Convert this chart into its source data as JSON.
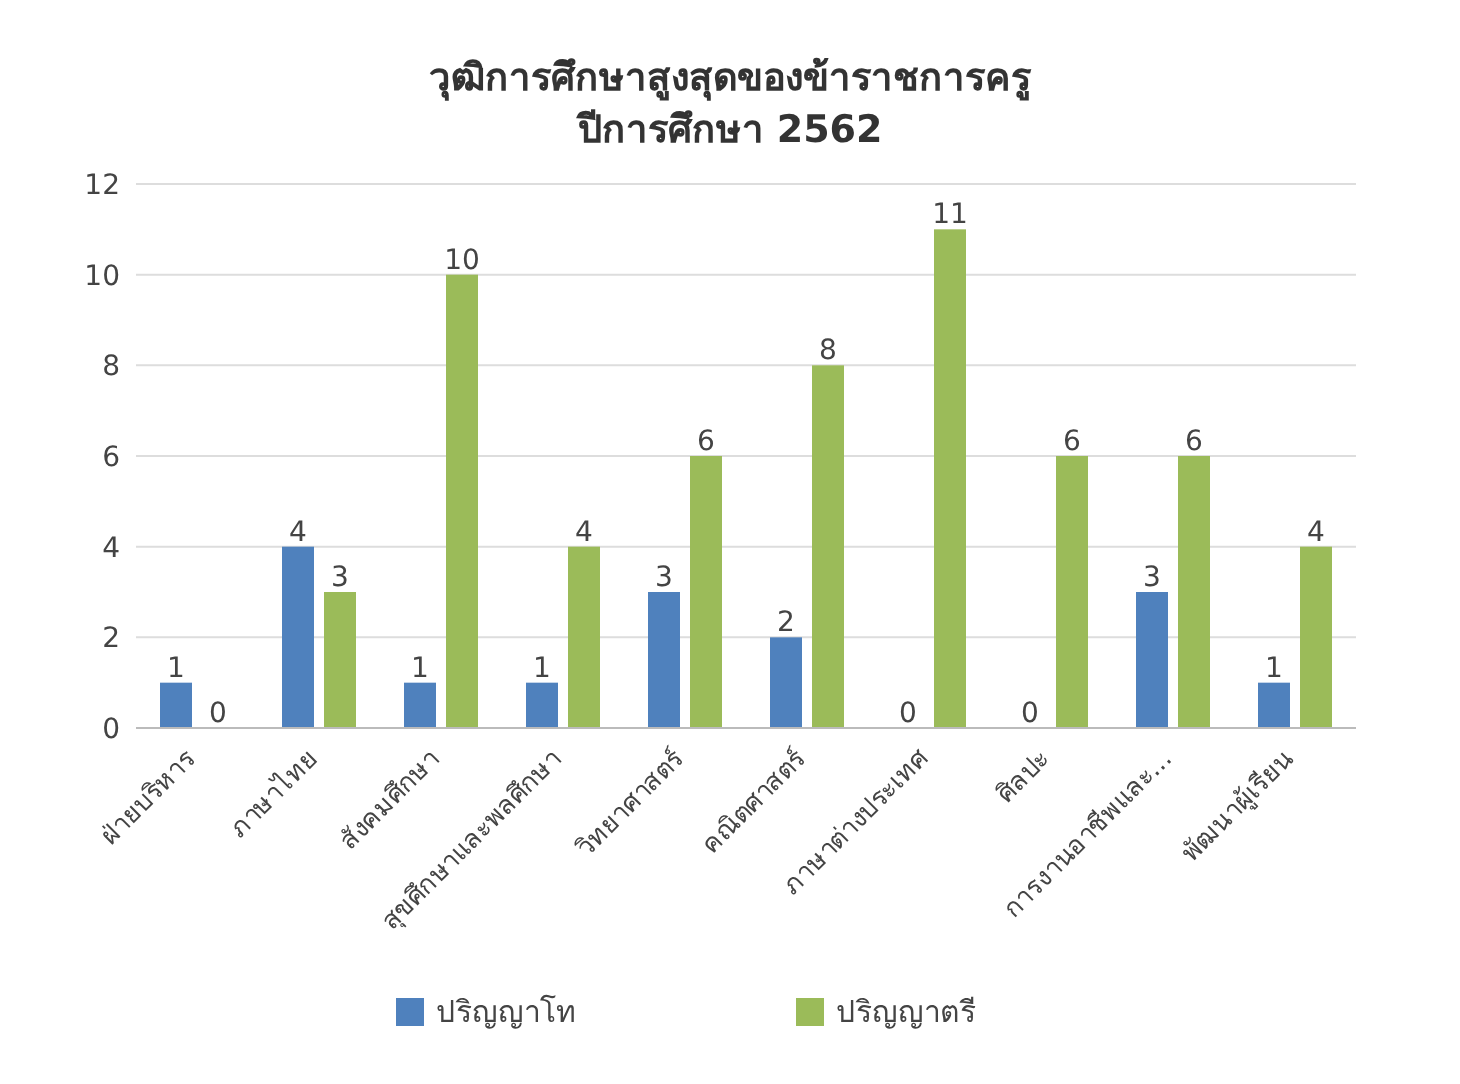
{
  "chart_data": {
    "type": "bar",
    "title": "วุฒิการศึกษาสูงสุดของข้าราชการครู",
    "subtitle": "ปีการศึกษา 2562",
    "categories": [
      "ฝ่ายบริหาร",
      "ภาษาไทย",
      "สังคมศึกษา",
      "สุขศึกษาและพลศึกษา",
      "วิทยาศาสตร์",
      "คณิตศาสตร์",
      "ภาษาต่างประเทศ",
      "ศิลปะ",
      "การงานอาชีพและ...",
      "พัฒนาผู้เรียน"
    ],
    "series": [
      {
        "name": "ปริญญาโท",
        "color": "#4f81bd",
        "values": [
          1,
          4,
          1,
          1,
          3,
          2,
          0,
          0,
          3,
          1
        ]
      },
      {
        "name": "ปริญญาตรี",
        "color": "#9bbb59",
        "values": [
          0,
          3,
          10,
          4,
          6,
          8,
          11,
          6,
          6,
          4
        ]
      }
    ],
    "ylim": [
      0,
      12
    ],
    "yticks": [
      0,
      2,
      4,
      6,
      8,
      10,
      12
    ],
    "grid": "y",
    "legend": "bottom",
    "data_labels": true
  }
}
